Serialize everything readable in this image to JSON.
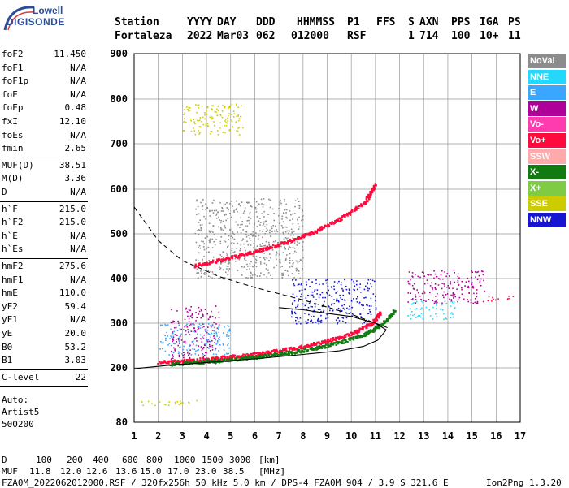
{
  "logo": {
    "line1": "Lowell",
    "line2": "DIGISONDE"
  },
  "header": {
    "labels": [
      "Station",
      "YYYY",
      "DAY",
      "DDD",
      "HHMMSS",
      "P1",
      "FFS",
      "S",
      "AXN",
      "PPS",
      "IGA",
      "PS"
    ],
    "values": [
      "Fortaleza",
      "2022",
      "Mar03",
      "062",
      "012000",
      "RSF",
      "1",
      "714",
      "100",
      "10+",
      "11"
    ]
  },
  "params_group1": [
    {
      "name": "foF2",
      "value": "11.450"
    },
    {
      "name": "foF1",
      "value": "N/A"
    },
    {
      "name": "foF1p",
      "value": "N/A"
    },
    {
      "name": "foE",
      "value": "N/A"
    },
    {
      "name": "foEp",
      "value": "0.48"
    },
    {
      "name": "fxI",
      "value": "12.10"
    },
    {
      "name": "foEs",
      "value": "N/A"
    },
    {
      "name": "fmin",
      "value": "2.65"
    }
  ],
  "params_group2": [
    {
      "name": "MUF(D)",
      "value": "38.51"
    },
    {
      "name": "M(D)",
      "value": "3.36"
    },
    {
      "name": "D",
      "value": "N/A"
    }
  ],
  "params_group3": [
    {
      "name": "h`F",
      "value": "215.0"
    },
    {
      "name": "h`F2",
      "value": "215.0"
    },
    {
      "name": "h`E",
      "value": "N/A"
    },
    {
      "name": "h`Es",
      "value": "N/A"
    }
  ],
  "params_group4": [
    {
      "name": "hmF2",
      "value": "275.6"
    },
    {
      "name": "hmF1",
      "value": "N/A"
    },
    {
      "name": "hmE",
      "value": "110.0"
    },
    {
      "name": "yF2",
      "value": "59.4"
    },
    {
      "name": "yF1",
      "value": "N/A"
    },
    {
      "name": "yE",
      "value": "20.0"
    },
    {
      "name": "B0",
      "value": "53.2"
    },
    {
      "name": "B1",
      "value": "3.03"
    }
  ],
  "params_group5": [
    {
      "name": "C-level",
      "value": "22"
    }
  ],
  "autoscaling": [
    "Auto:",
    "Artist5",
    "500200"
  ],
  "legend": [
    {
      "label": "NoVal",
      "color": "#8c8c8c"
    },
    {
      "label": "NNE",
      "color": "#22d8ff"
    },
    {
      "label": "E",
      "color": "#3aa6ff"
    },
    {
      "label": "W",
      "color": "#b0009a"
    },
    {
      "label": "Vo-",
      "color": "#ff3bb0"
    },
    {
      "label": "Vo+",
      "color": "#ff0a3c"
    },
    {
      "label": "SSW",
      "color": "#ffaaaa"
    },
    {
      "label": "X-",
      "color": "#117a11"
    },
    {
      "label": "X+",
      "color": "#7fcc44"
    },
    {
      "label": "SSE",
      "color": "#cccc00"
    },
    {
      "label": "NNW",
      "color": "#1515d2"
    }
  ],
  "footer": {
    "d_label": "D",
    "d_values": [
      "100",
      "200",
      "400",
      "600",
      "800",
      "1000",
      "1500",
      "3000"
    ],
    "d_unit": "[km]",
    "muf_label": "MUF",
    "muf_values": [
      "11.8",
      "12.0",
      "12.6",
      "13.6",
      "15.0",
      "17.0",
      "23.0",
      "38.5"
    ],
    "muf_unit": "[MHz]",
    "file_info": "FZA0M_2022062012000.RSF / 320fx256h 50 kHz 5.0 km / DPS-4 FZA0M 904 / 3.9 S 321.6 E",
    "version": "Ion2Png 1.3.20"
  },
  "chart_data": {
    "type": "scatter",
    "x_ticks": [
      "1",
      "2",
      "3",
      "4",
      "5",
      "6",
      "7",
      "8",
      "9",
      "10",
      "11",
      "12",
      "13",
      "14",
      "15",
      "16",
      "17"
    ],
    "y_ticks": [
      "80",
      "200",
      "300",
      "400",
      "500",
      "600",
      "700",
      "800",
      "900"
    ],
    "xlim": [
      1,
      17
    ],
    "ylim": [
      80,
      900
    ],
    "grid": true,
    "legend_position": "right",
    "series": [
      {
        "name": "Vo+",
        "color": "#ff0a3c",
        "type": "trace",
        "x": [
          2.0,
          3.0,
          4.0,
          5.0,
          6.0,
          7.0,
          8.0,
          9.0,
          10.0,
          10.8,
          11.2
        ],
        "y": [
          214,
          217,
          221,
          226,
          232,
          240,
          249,
          262,
          278,
          300,
          325
        ]
      },
      {
        "name": "Vo+",
        "color": "#ff0a3c",
        "type": "trace",
        "x": [
          3.5,
          4.5,
          5.5,
          6.5,
          7.5,
          8.5,
          9.5,
          10.5,
          11.0
        ],
        "y": [
          430,
          442,
          455,
          470,
          487,
          508,
          535,
          570,
          612
        ]
      },
      {
        "name": "X-",
        "color": "#117a11",
        "type": "trace",
        "x": [
          2.5,
          3.5,
          4.5,
          5.5,
          6.5,
          7.5,
          8.5,
          9.5,
          10.5,
          11.3,
          11.8
        ],
        "y": [
          210,
          214,
          218,
          223,
          229,
          236,
          246,
          258,
          276,
          300,
          330
        ]
      },
      {
        "name": "W",
        "color": "#b0009a",
        "type": "cloud",
        "x": [
          2.5,
          4.5
        ],
        "y": [
          210,
          340
        ]
      },
      {
        "name": "E",
        "color": "#3aa6ff",
        "type": "cloud",
        "x": [
          2.0,
          5.0
        ],
        "y": [
          230,
          300
        ]
      },
      {
        "name": "SSE",
        "color": "#cccc00",
        "type": "cloud",
        "x": [
          3.0,
          5.5
        ],
        "y": [
          720,
          790
        ]
      },
      {
        "name": "NNE",
        "color": "#22d8ff",
        "type": "cloud",
        "x": [
          12.3,
          14.3
        ],
        "y": [
          310,
          350
        ]
      },
      {
        "name": "W",
        "color": "#b0009a",
        "type": "cloud",
        "x": [
          12.3,
          15.5
        ],
        "y": [
          345,
          420
        ]
      },
      {
        "name": "Vo+",
        "color": "#ff0a3c",
        "type": "cloud",
        "x": [
          15.5,
          17.0
        ],
        "y": [
          350,
          362
        ]
      },
      {
        "name": "SSE",
        "color": "#cccc00",
        "type": "cloud",
        "x": [
          1.3,
          3.8
        ],
        "y": [
          118,
          130
        ]
      },
      {
        "name": "NNW",
        "color": "#1515d2",
        "type": "cloud",
        "x": [
          7.5,
          11.0
        ],
        "y": [
          300,
          400
        ]
      },
      {
        "name": "NoVal",
        "color": "#8c8c8c",
        "type": "cloud",
        "x": [
          3.5,
          8.0
        ],
        "y": [
          400,
          580
        ]
      }
    ],
    "model_curves": [
      {
        "style": "solid",
        "x": [
          1.0,
          2.5,
          4.0,
          6.0,
          8.0,
          9.5,
          10.5,
          11.1,
          11.45,
          11.0,
          10.0,
          9.0,
          8.0,
          7.0
        ],
        "y": [
          198,
          206,
          212,
          220,
          230,
          238,
          248,
          262,
          285,
          300,
          315,
          322,
          330,
          335
        ]
      },
      {
        "style": "dashed",
        "x": [
          1.0,
          2.0,
          3.0,
          4.5,
          6.0,
          8.0,
          10.0,
          11.5
        ],
        "y": [
          560,
          485,
          440,
          405,
          380,
          352,
          320,
          290
        ]
      }
    ]
  }
}
